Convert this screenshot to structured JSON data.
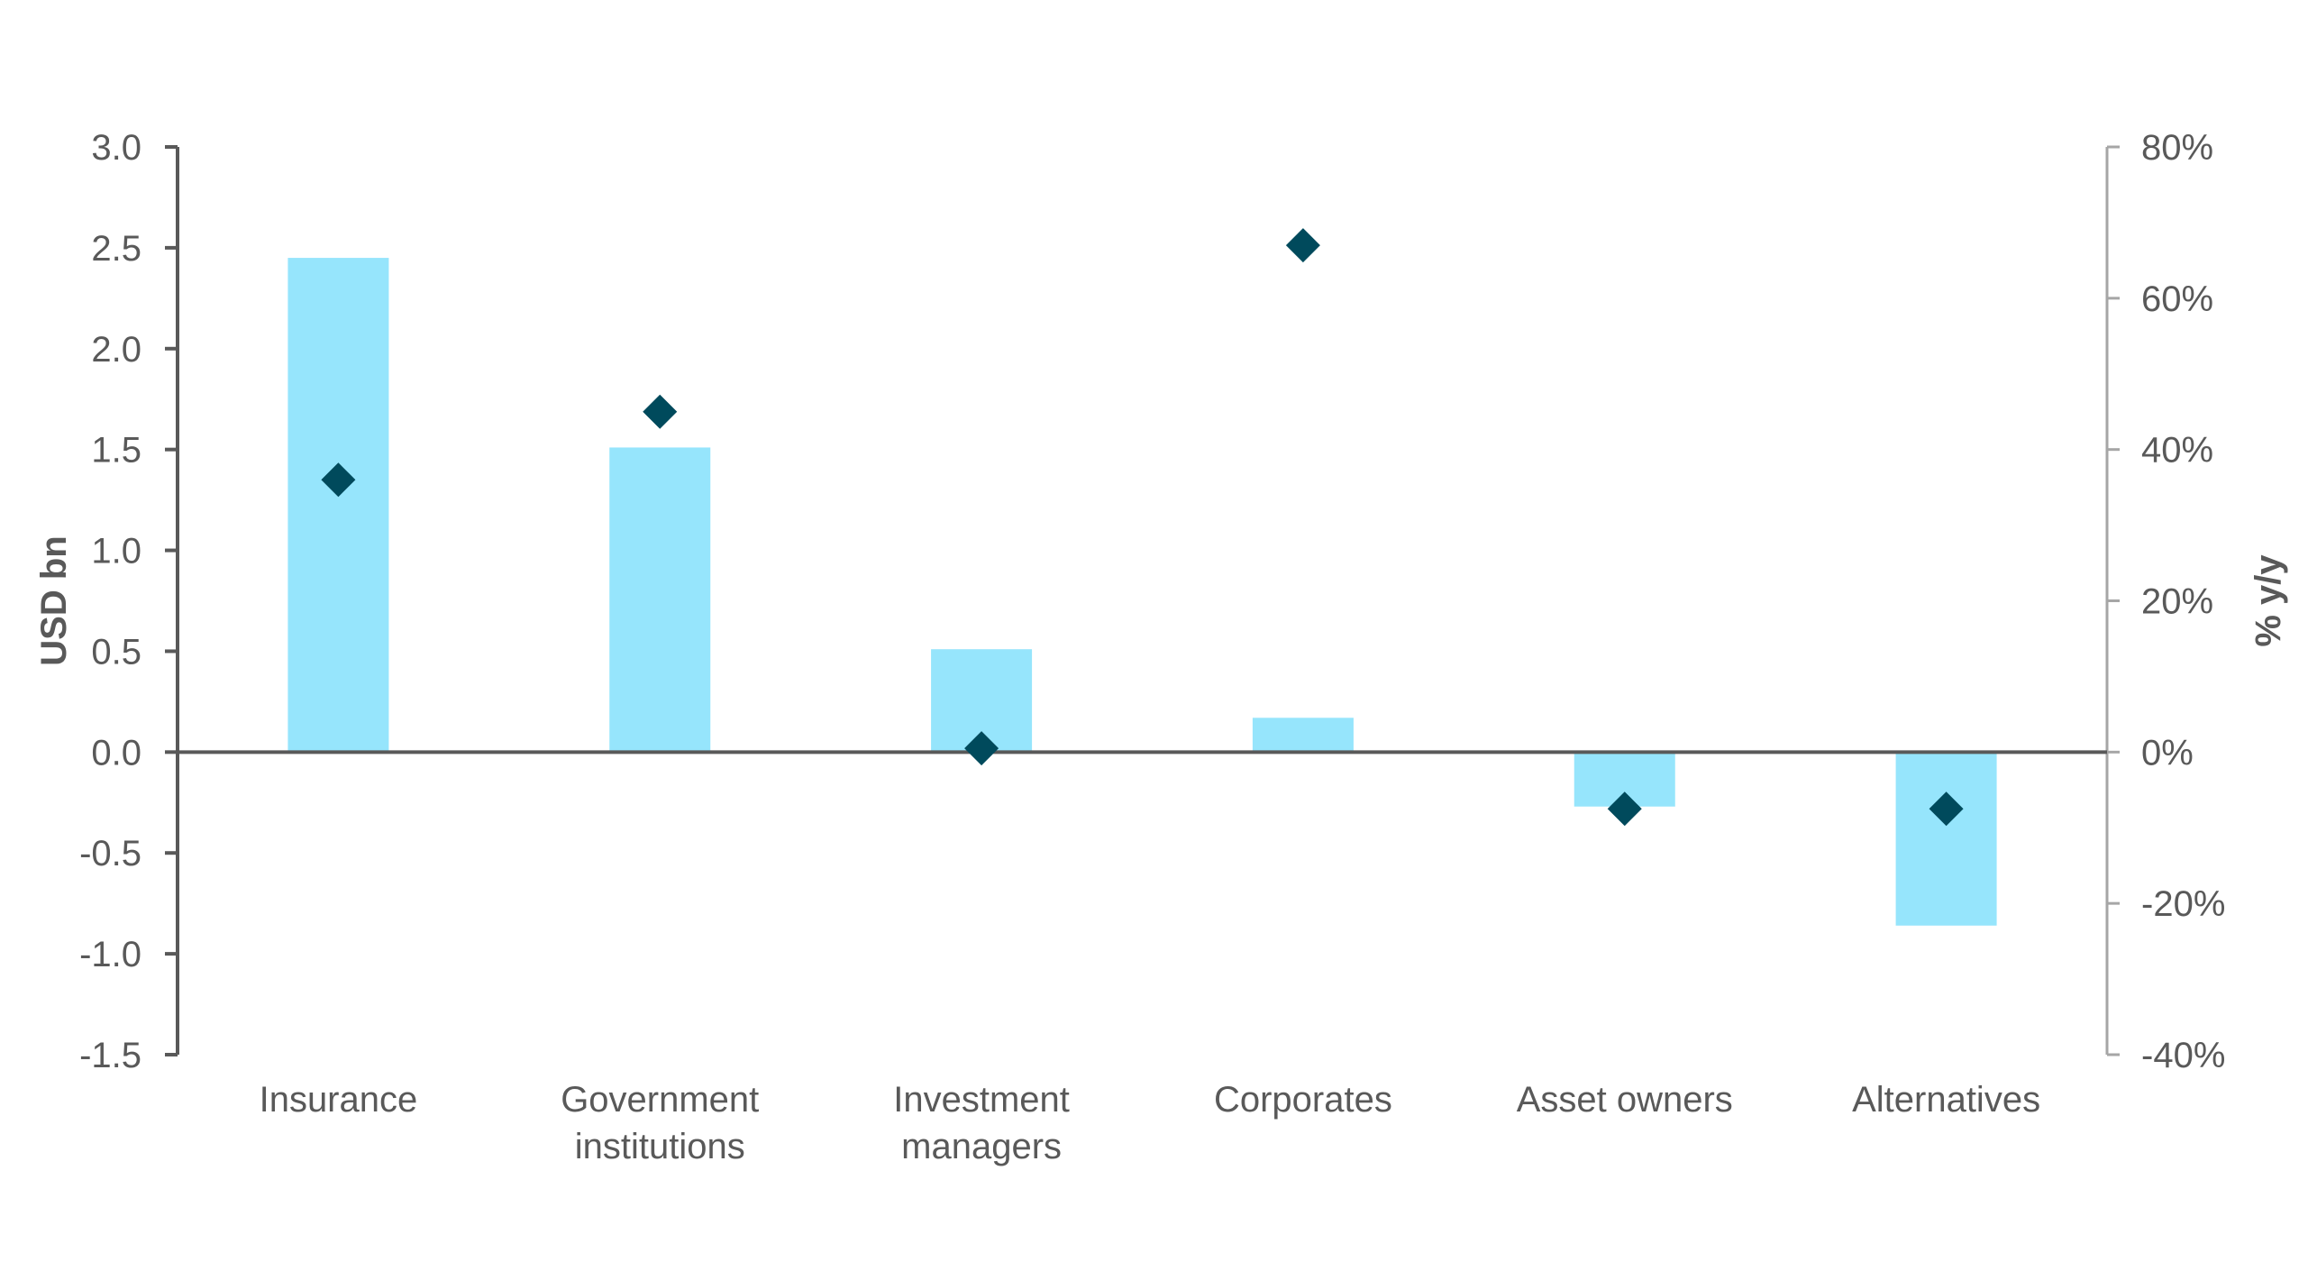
{
  "chart_data": {
    "type": "bar",
    "title": "",
    "xlabel": "",
    "ylabel": "USD bn",
    "y2label": "% y/y",
    "categories": [
      [
        "Insurance"
      ],
      [
        "Government",
        "institutions"
      ],
      [
        "Investment",
        "managers"
      ],
      [
        "Corporates"
      ],
      [
        "Asset owners"
      ],
      [
        "Alternatives"
      ]
    ],
    "ylim": [
      -1.5,
      3.0
    ],
    "yticks": [
      "3.0",
      "2.5",
      "2.0",
      "1.5",
      "1.0",
      "0.5",
      "0.0",
      "-0.5",
      "-1.0",
      "-1.5"
    ],
    "y2lim": [
      -40,
      80
    ],
    "y2ticks": [
      "80%",
      "60%",
      "40%",
      "20%",
      "0%",
      "-20%",
      "-40%"
    ],
    "series": [
      {
        "axis": "left",
        "kind": "bar",
        "color": "#96E5FC",
        "values": [
          2.45,
          1.51,
          0.51,
          0.17,
          -0.27,
          -0.86
        ]
      },
      {
        "axis": "right",
        "kind": "marker",
        "marker": "diamond",
        "color": "#004A5C",
        "values": [
          36,
          45,
          0.5,
          67,
          -7.5,
          -7.5
        ]
      }
    ],
    "grid": false,
    "legend": "none",
    "colors": {
      "axis": "#595959",
      "right_axis": "#A6A6A6",
      "text": "#595959"
    }
  }
}
